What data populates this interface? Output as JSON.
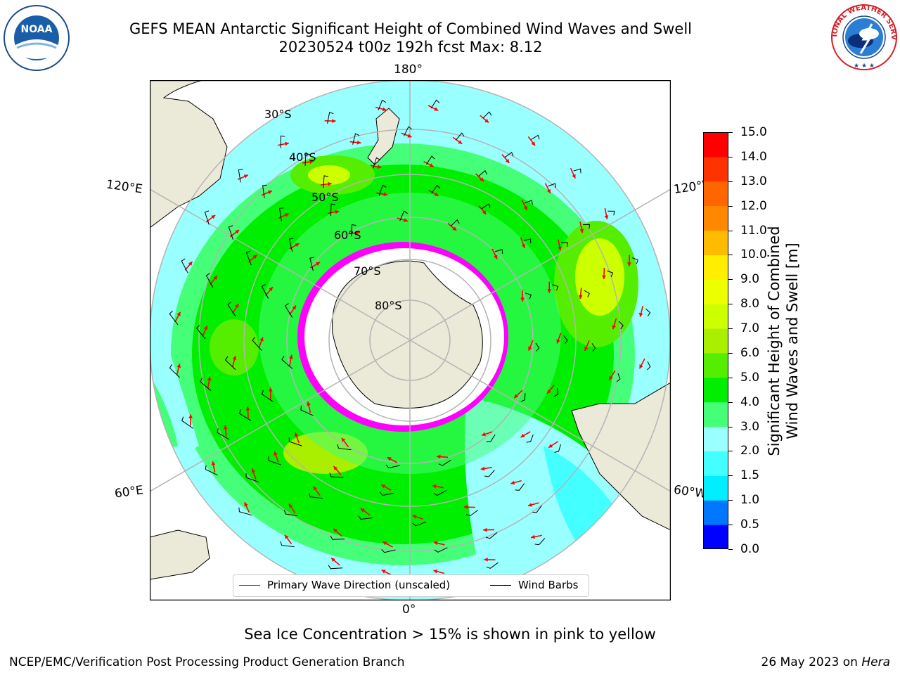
{
  "header": {
    "title_line1": "GEFS MEAN Antarctic Significant Height of Combined Wind Waves and Swell",
    "title_line2": "20230524 t00z 192h fcst   Max: 8.12"
  },
  "logos": {
    "noaa": "NOAA",
    "nws": "NATIONAL WEATHER SERVICE"
  },
  "map": {
    "projection": "south-polar-stereographic",
    "longitude_labels": {
      "top": "180°",
      "bottom": "0°",
      "upper_left": "120°E",
      "upper_right": "120°W",
      "lower_left": "60°E",
      "lower_right": "60°W"
    },
    "latitude_labels": [
      "30°S",
      "40°S",
      "50°S",
      "60°S",
      "70°S",
      "80°S"
    ],
    "colors": {
      "land": "#ebe9d8",
      "gridline": "#b4b4b4",
      "ice": "#ff00ff",
      "wave_arrow": "#ff0000",
      "wind_barb": "#000000"
    }
  },
  "colorbar": {
    "label": "Significant Height of Combined\nWind Waves and Swell [m]",
    "ticks": [
      "0.0",
      "0.5",
      "1.0",
      "1.5",
      "2.0",
      "3.0",
      "4.0",
      "5.0",
      "6.0",
      "7.0",
      "8.0",
      "9.0",
      "10.0",
      "11.0",
      "12.0",
      "13.0",
      "14.0",
      "15.0"
    ],
    "colors": [
      "#0000ff",
      "#0077ff",
      "#00eeff",
      "#44ffff",
      "#99ffff",
      "#44ff77",
      "#00ee00",
      "#55ee00",
      "#aaee00",
      "#ccff00",
      "#eeff00",
      "#ffee00",
      "#ffbb00",
      "#ff8800",
      "#ff6600",
      "#ff3300",
      "#ff0000"
    ]
  },
  "legend": {
    "wave_label": "Primary Wave Direction (unscaled)",
    "wind_label": "Wind Barbs"
  },
  "footer": {
    "ice_note": "Sea Ice Concentration > 15% is shown in pink to yellow",
    "credit": "NCEP/EMC/Verification Post Processing Product Generation Branch",
    "date": "26 May 2023 on",
    "machine": "Hera"
  }
}
